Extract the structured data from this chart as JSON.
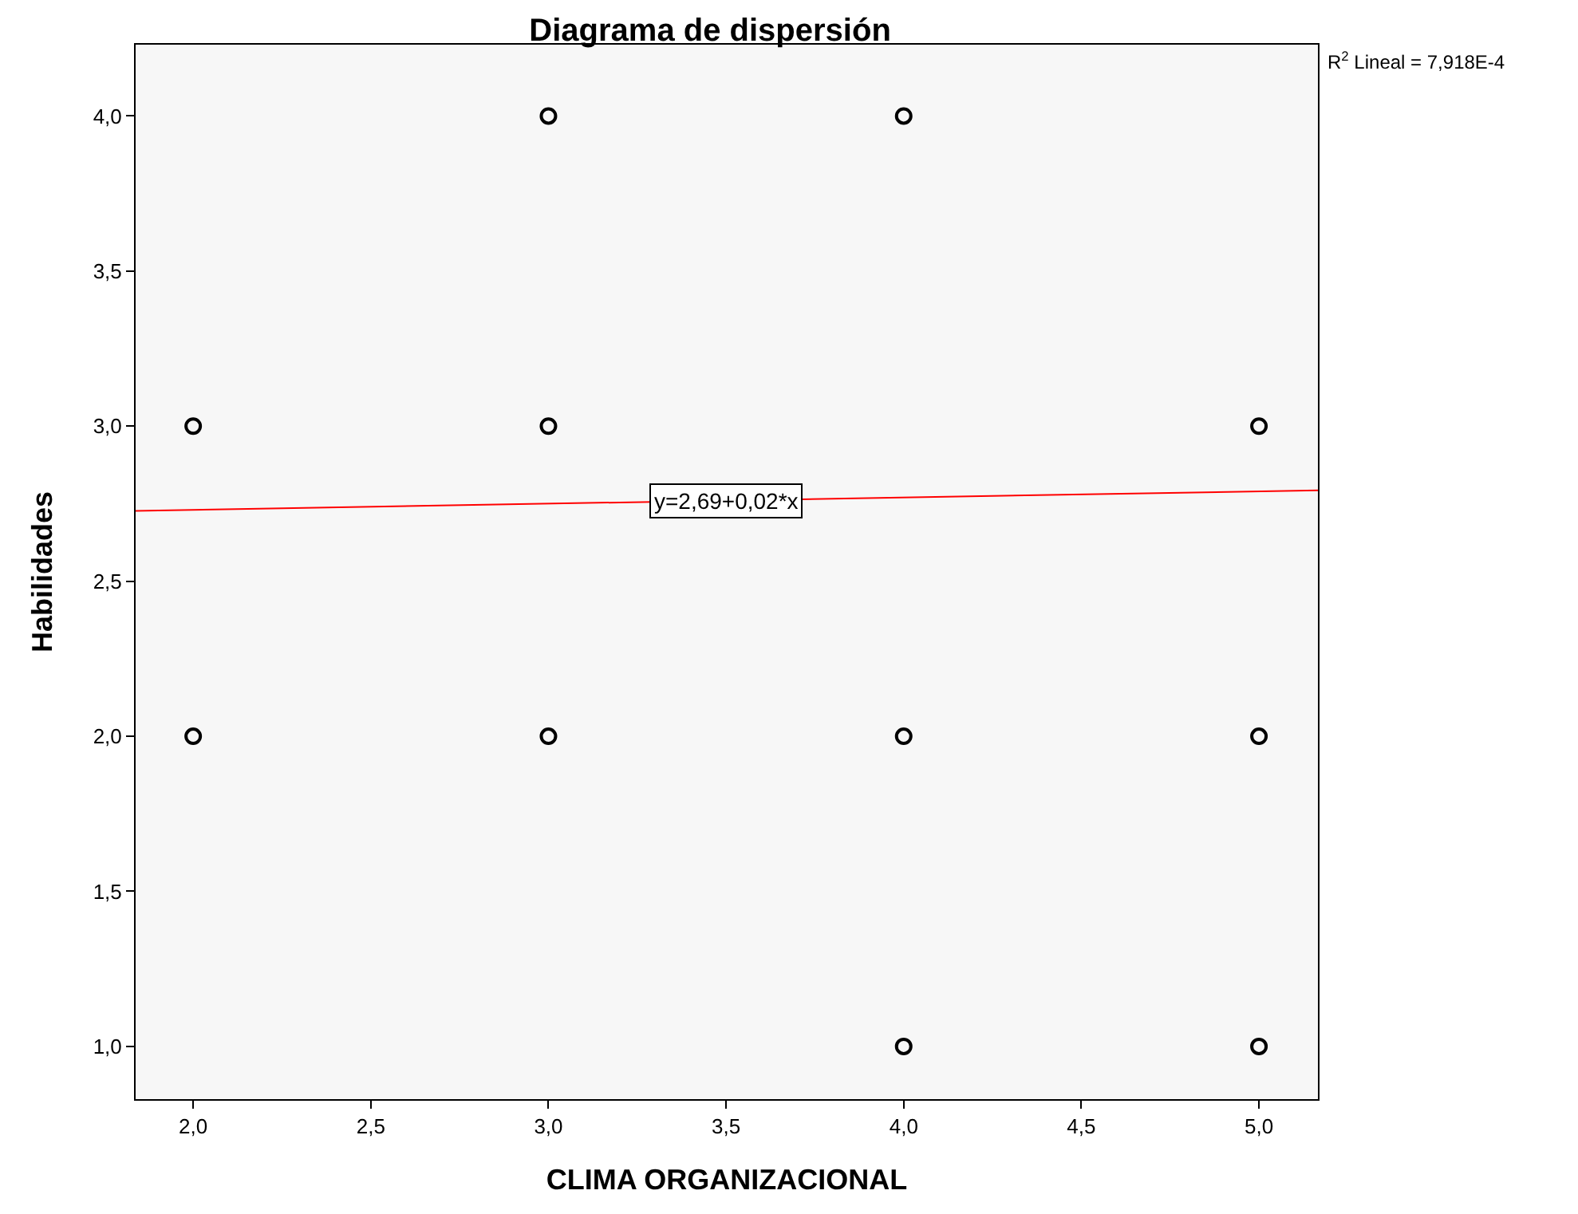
{
  "chart_data": {
    "type": "scatter",
    "title": "Diagrama de dispersión",
    "xlabel": "CLIMA ORGANIZACIONAL",
    "ylabel": "Habilidades",
    "series": [
      {
        "type": "scatter",
        "marker": "circle",
        "color": "#000000",
        "x": [
          2,
          2,
          3,
          3,
          3,
          4,
          4,
          4,
          5,
          5,
          5
        ],
        "values": [
          3,
          2,
          4,
          3,
          2,
          4,
          2,
          1,
          3,
          2,
          1
        ]
      },
      {
        "type": "line",
        "color": "#ff0000",
        "x": [
          1.838,
          5.166
        ],
        "values": [
          2.727,
          2.793
        ]
      }
    ],
    "xlim": [
      1.838,
      5.166
    ],
    "ylim": [
      0.83,
      4.23
    ],
    "xticks": [
      {
        "value": 2,
        "label": "2,0"
      },
      {
        "value": 2.5,
        "label": "2,5"
      },
      {
        "value": 3,
        "label": "3,0"
      },
      {
        "value": 3.5,
        "label": "3,5"
      },
      {
        "value": 4,
        "label": "4,0"
      },
      {
        "value": 4.5,
        "label": "4,5"
      },
      {
        "value": 5,
        "label": "5,0"
      }
    ],
    "yticks": [
      {
        "value": 1,
        "label": "1,0"
      },
      {
        "value": 1.5,
        "label": "1,5"
      },
      {
        "value": 2,
        "label": "2,0"
      },
      {
        "value": 2.5,
        "label": "2,5"
      },
      {
        "value": 3,
        "label": "3,0"
      },
      {
        "value": 3.5,
        "label": "3,5"
      },
      {
        "value": 4,
        "label": "4,0"
      }
    ],
    "annotations": [
      {
        "text": "y=2,69+0,02*x",
        "x": 3.5,
        "y": 2.76
      },
      "R$^{2}$ Lineal = 7,918E-4"
    ],
    "grid": false,
    "legend": false
  }
}
